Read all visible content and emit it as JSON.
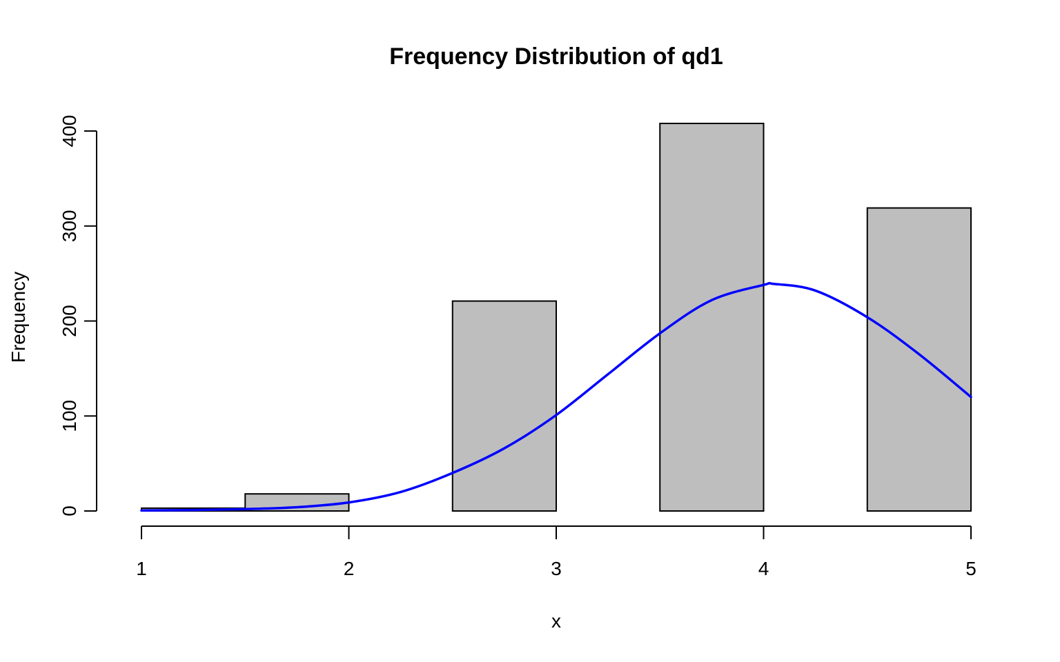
{
  "chart_data": {
    "type": "bar",
    "title": "Frequency Distribution of qd1",
    "xlabel": "x",
    "ylabel": "Frequency",
    "xlim": [
      1,
      5
    ],
    "ylim": [
      0,
      400
    ],
    "x_ticks": [
      "1",
      "2",
      "3",
      "4",
      "5"
    ],
    "y_ticks": [
      "0",
      "100",
      "200",
      "300",
      "400"
    ],
    "grid": false,
    "bars": [
      {
        "x0": 1.0,
        "x1": 1.5,
        "value": 3
      },
      {
        "x0": 1.5,
        "x1": 2.0,
        "value": 18
      },
      {
        "x0": 2.0,
        "x1": 2.5,
        "value": 0
      },
      {
        "x0": 2.5,
        "x1": 3.0,
        "value": 221
      },
      {
        "x0": 3.0,
        "x1": 3.5,
        "value": 0
      },
      {
        "x0": 3.5,
        "x1": 4.0,
        "value": 408
      },
      {
        "x0": 4.0,
        "x1": 4.5,
        "value": 0
      },
      {
        "x0": 4.5,
        "x1": 5.0,
        "value": 319
      }
    ],
    "curve": {
      "type": "line",
      "x": [
        1.0,
        1.25,
        1.5,
        1.75,
        2.0,
        2.25,
        2.5,
        2.75,
        3.0,
        3.25,
        3.5,
        3.75,
        4.0,
        4.05,
        4.25,
        4.5,
        4.75,
        5.0
      ],
      "y": [
        0.5,
        1,
        2,
        4,
        9,
        20,
        40,
        66,
        101,
        144,
        187,
        222,
        238,
        239,
        232,
        204,
        165,
        120
      ]
    },
    "colors": {
      "bar_fill": "#bebebe",
      "bar_stroke": "#000000",
      "curve": "#0000ff"
    }
  }
}
